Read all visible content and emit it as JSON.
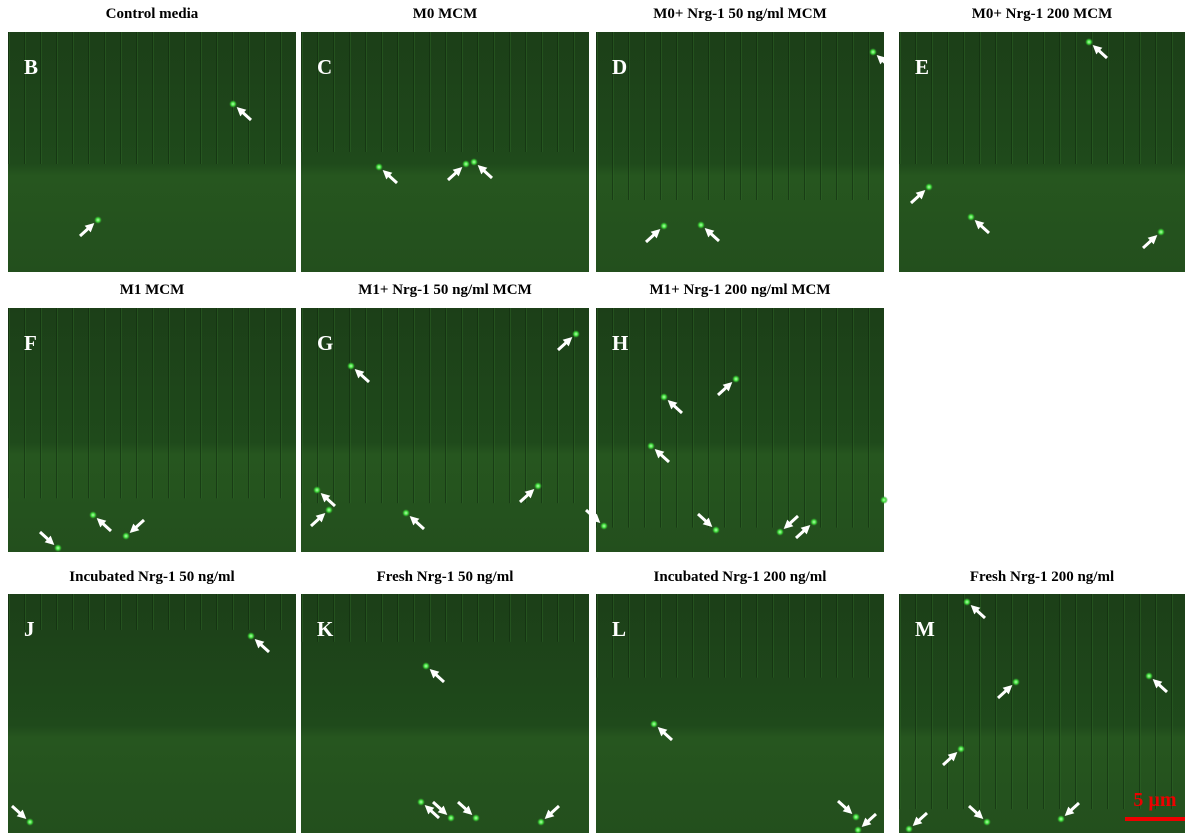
{
  "panels": [
    {
      "title": "Control media",
      "letter": "B"
    },
    {
      "title": "M0 MCM",
      "letter": "C"
    },
    {
      "title": "M0+ Nrg-1 50 ng/ml MCM",
      "letter": "D"
    },
    {
      "title": "M0+ Nrg-1 200 MCM",
      "letter": "E"
    },
    {
      "title": "M1 MCM",
      "letter": "F"
    },
    {
      "title": "M1+ Nrg-1 50 ng/ml MCM",
      "letter": "G"
    },
    {
      "title": "M1+ Nrg-1 200 ng/ml MCM",
      "letter": "H"
    },
    {
      "title": "Incubated  Nrg-1 50 ng/ml",
      "letter": "J"
    },
    {
      "title": "Fresh Nrg-1 50 ng/ml",
      "letter": "K"
    },
    {
      "title": "Incubated  Nrg-1 200 ng/ml",
      "letter": "L"
    },
    {
      "title": "Fresh Nrg-1 200 ng/ml",
      "letter": "M"
    }
  ],
  "scale_bar": "5 µm"
}
